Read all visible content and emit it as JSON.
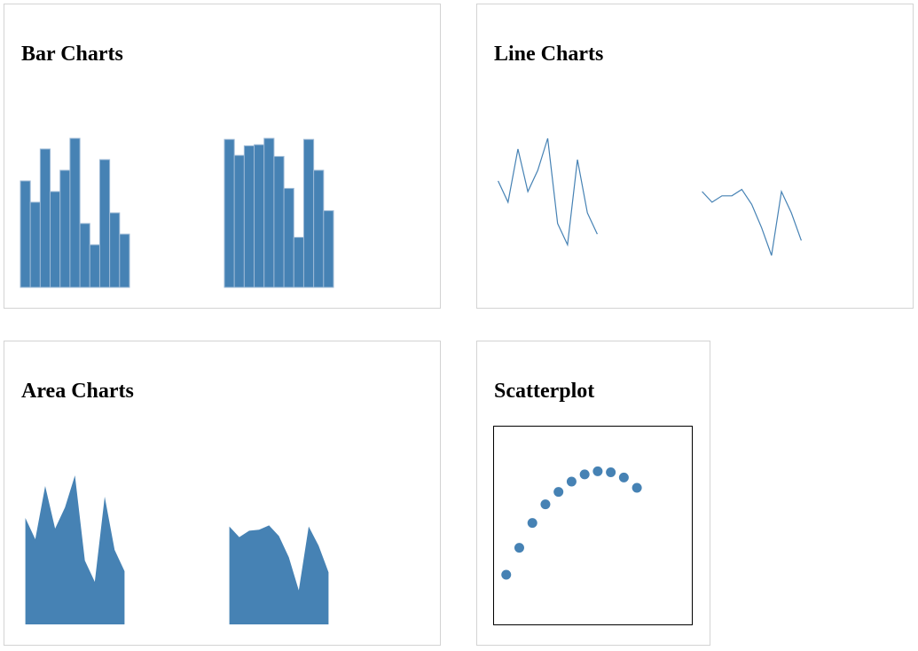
{
  "colors": {
    "mark": "#4682b4",
    "bar_stroke": "#9cb9d6",
    "panel_border": "#d3d3d3",
    "frame": "#000000"
  },
  "panels": {
    "bar": {
      "title": "Bar Charts"
    },
    "line": {
      "title": "Line Charts"
    },
    "area": {
      "title": "Area Charts"
    },
    "scatter": {
      "title": "Scatterplot"
    }
  },
  "chart_data": [
    {
      "id": "bar-1",
      "type": "bar",
      "panel": "bar",
      "values": [
        5,
        4,
        6.5,
        4.5,
        5.5,
        7,
        3,
        2,
        6,
        3.5,
        2.5
      ],
      "ylim": [
        0,
        7
      ]
    },
    {
      "id": "bar-2",
      "type": "bar",
      "panel": "bar",
      "values": [
        6.95,
        6.2,
        6.65,
        6.7,
        7.0,
        6.15,
        4.65,
        2.35,
        6.95,
        5.5,
        3.6
      ],
      "ylim": [
        0,
        7
      ]
    },
    {
      "id": "line-1",
      "type": "line",
      "panel": "line",
      "values": [
        5,
        4,
        6.5,
        4.5,
        5.5,
        7,
        3,
        2,
        6,
        3.5,
        2.5
      ],
      "ylim": [
        0,
        7
      ]
    },
    {
      "id": "line-2",
      "type": "line",
      "panel": "line",
      "values": [
        4.5,
        4.0,
        4.3,
        4.3,
        4.6,
        3.9,
        2.8,
        1.5,
        4.5,
        3.5,
        2.2
      ],
      "ylim": [
        0,
        7
      ]
    },
    {
      "id": "area-1",
      "type": "area",
      "panel": "area",
      "values": [
        5,
        4,
        6.5,
        4.5,
        5.5,
        7,
        3,
        2,
        6,
        3.5,
        2.5
      ],
      "ylim": [
        0,
        7
      ]
    },
    {
      "id": "area-2",
      "type": "area",
      "panel": "area",
      "values": [
        4.6,
        4.1,
        4.4,
        4.45,
        4.65,
        4.15,
        3.15,
        1.6,
        4.6,
        3.7,
        2.45
      ],
      "ylim": [
        0,
        7
      ]
    },
    {
      "id": "scatter-1",
      "type": "scatter",
      "panel": "scatter",
      "x": [
        1,
        2,
        3,
        4,
        5,
        6,
        7,
        8,
        9,
        10,
        11
      ],
      "y": [
        1,
        2.3,
        3.5,
        4.4,
        5.0,
        5.5,
        5.85,
        6.0,
        5.95,
        5.7,
        5.2
      ],
      "xlim": [
        0,
        15.2
      ],
      "ylim": [
        -1.4,
        8.2
      ]
    }
  ]
}
